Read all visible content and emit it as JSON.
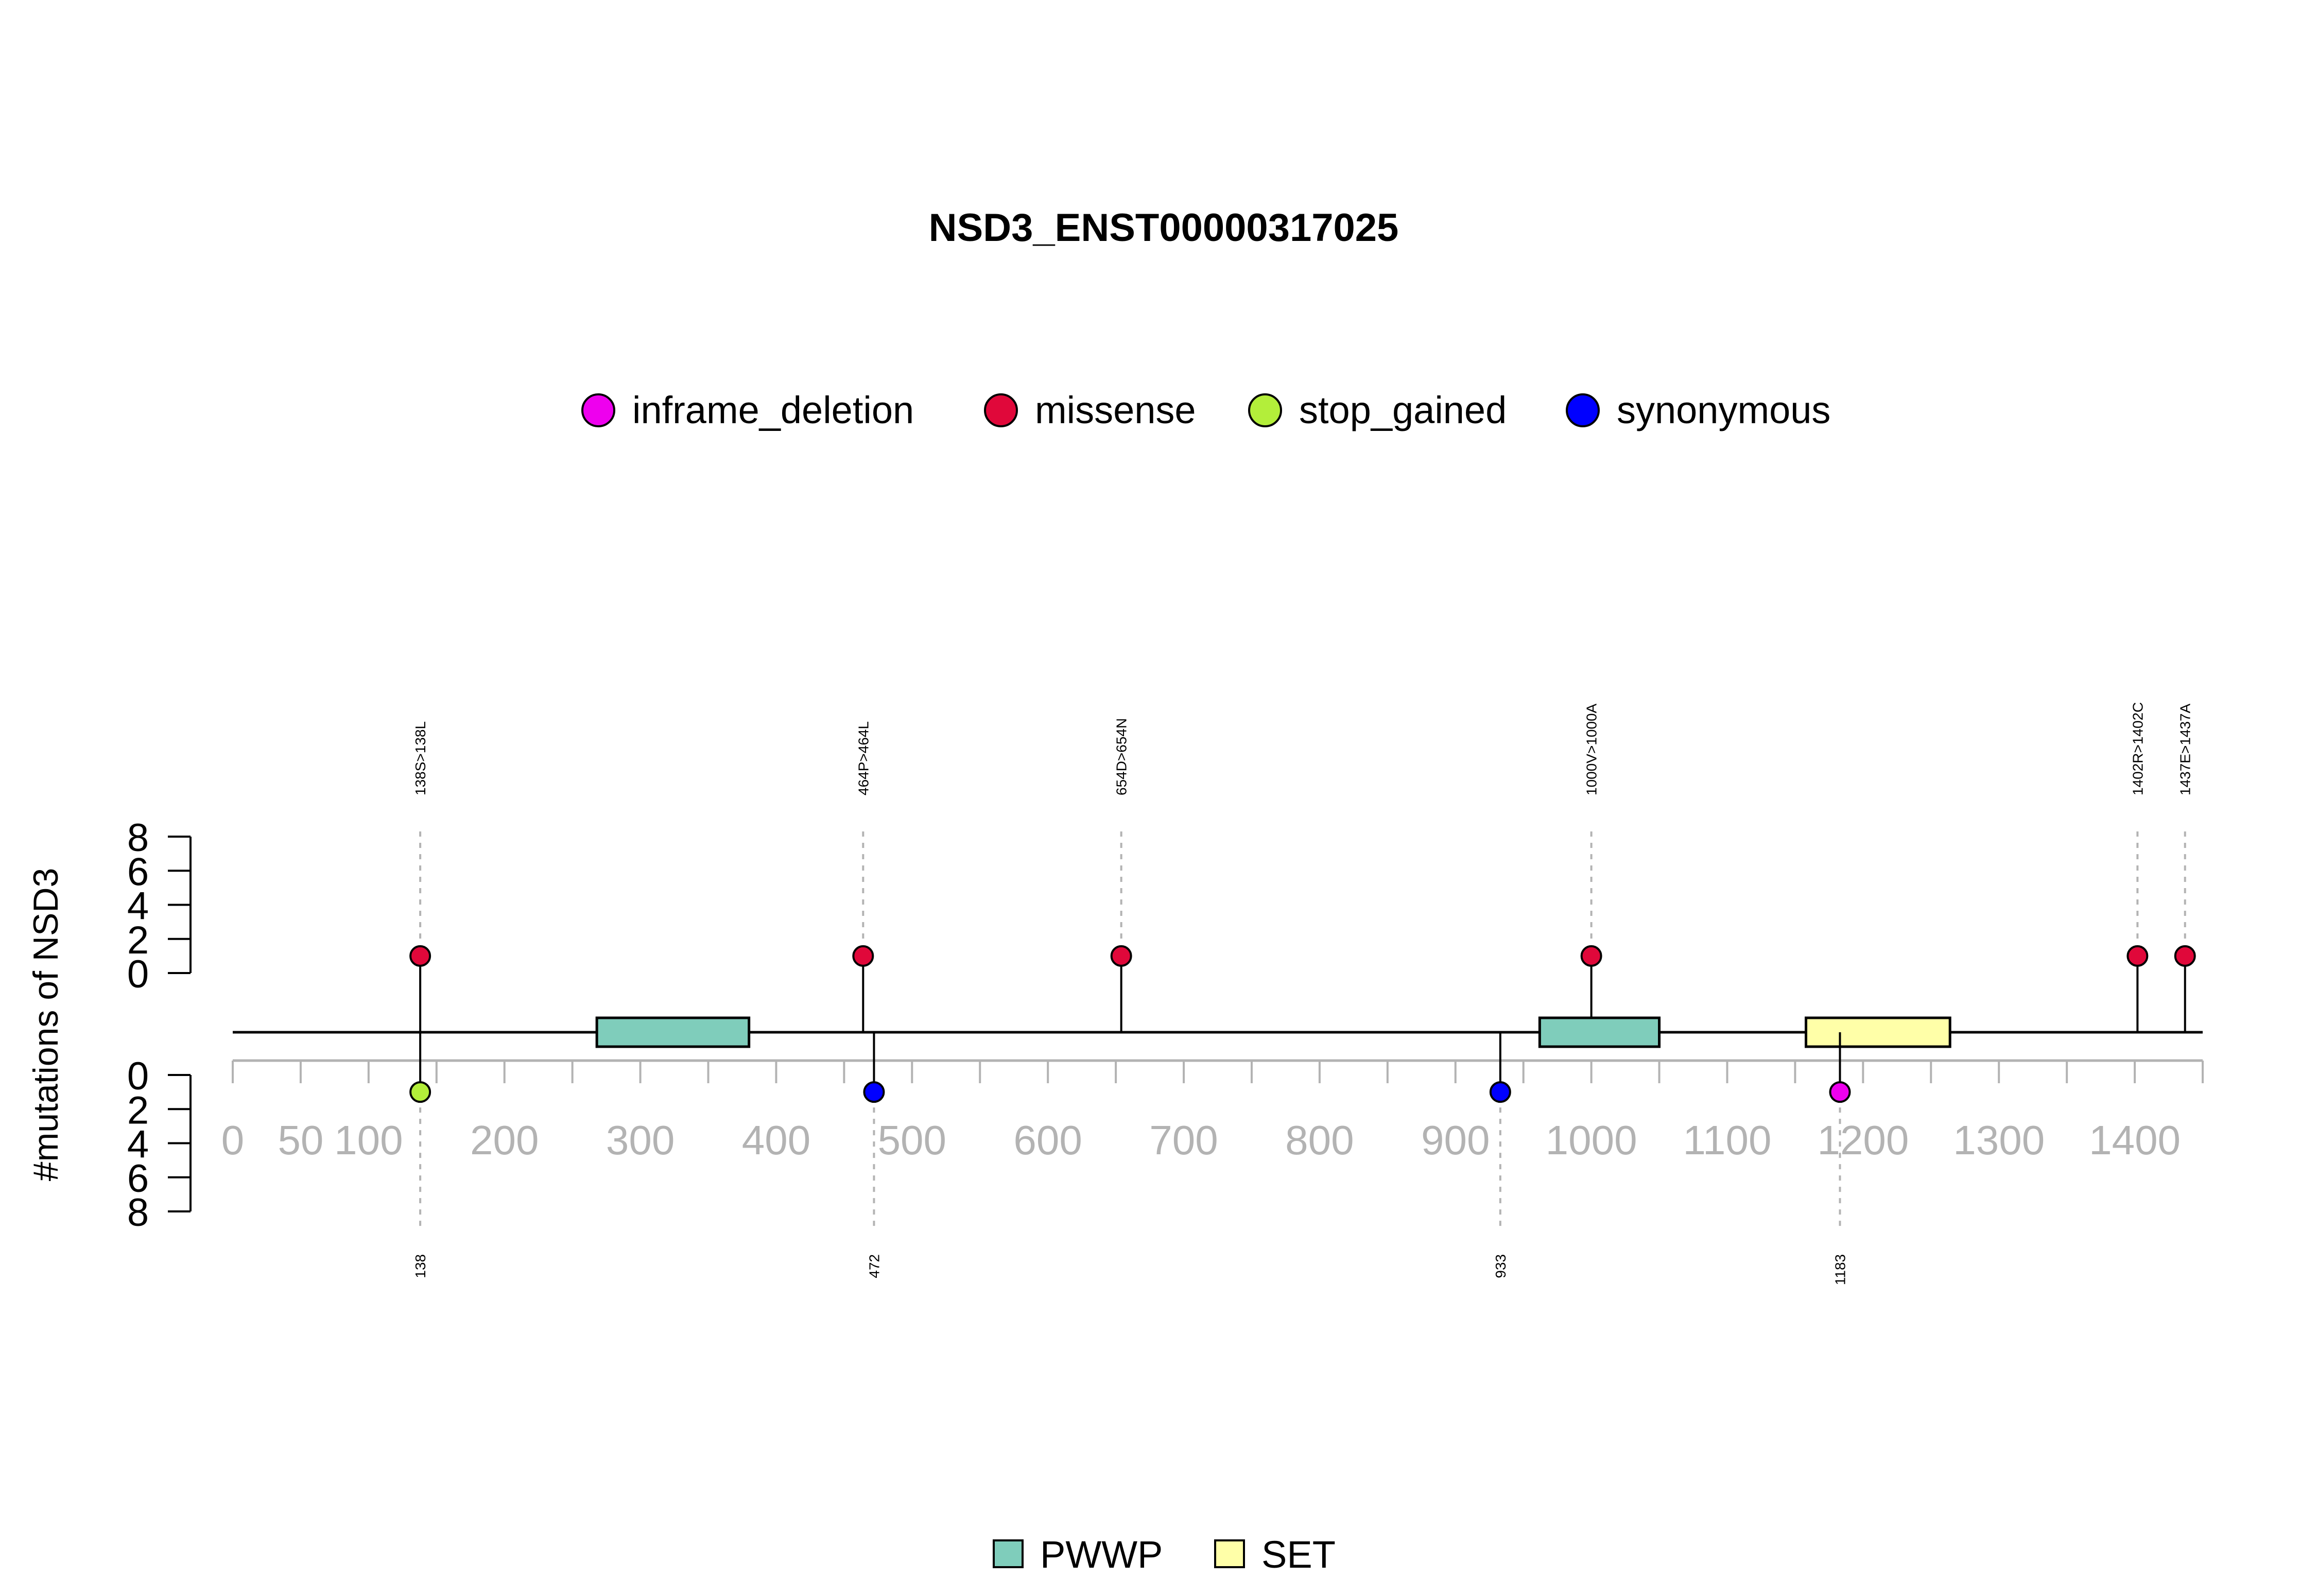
{
  "chart_data": {
    "type": "lollipop",
    "title": "NSD3_ENST00000317025",
    "ylabel": "#mutations of NSD3",
    "x_ticks": [
      0,
      50,
      100,
      200,
      300,
      400,
      500,
      600,
      700,
      800,
      900,
      1000,
      1100,
      1200,
      1300,
      1400
    ],
    "x_range": [
      0,
      1450
    ],
    "y_ticks": [
      0,
      2,
      4,
      6,
      8
    ],
    "y_range": [
      0,
      8
    ],
    "legend_mutations": [
      {
        "label": "inframe_deletion",
        "color": "#ee00ee"
      },
      {
        "label": "missense",
        "color": "#e0083a"
      },
      {
        "label": "stop_gained",
        "color": "#b3ee3a"
      },
      {
        "label": "synonymous",
        "color": "#0000ff"
      }
    ],
    "legend_domains": [
      {
        "label": "PWWP",
        "color": "#7fcdbb"
      },
      {
        "label": "SET",
        "color": "#ffffa8"
      }
    ],
    "domains": [
      {
        "name": "PWWP",
        "start": 268,
        "end": 380
      },
      {
        "name": "PWWP",
        "start": 962,
        "end": 1050
      },
      {
        "name": "SET",
        "start": 1158,
        "end": 1264
      }
    ],
    "upper_mutations": [
      {
        "position": 138,
        "label": "138S>138L",
        "count": 1,
        "type": "missense"
      },
      {
        "position": 464,
        "label": "464P>464L",
        "count": 1,
        "type": "missense"
      },
      {
        "position": 654,
        "label": "654D>654N",
        "count": 1,
        "type": "missense"
      },
      {
        "position": 1000,
        "label": "1000V>1000A",
        "count": 1,
        "type": "missense"
      },
      {
        "position": 1402,
        "label": "1402R>1402C",
        "count": 1,
        "type": "missense"
      },
      {
        "position": 1437,
        "label": "1437E>1437A",
        "count": 1,
        "type": "missense"
      }
    ],
    "lower_mutations": [
      {
        "position": 138,
        "label": "138",
        "count": 1,
        "type": "stop_gained"
      },
      {
        "position": 472,
        "label": "472",
        "count": 1,
        "type": "synonymous"
      },
      {
        "position": 933,
        "label": "933",
        "count": 1,
        "type": "synonymous"
      },
      {
        "position": 1183,
        "label": "1183",
        "count": 1,
        "type": "inframe_deletion"
      }
    ]
  }
}
